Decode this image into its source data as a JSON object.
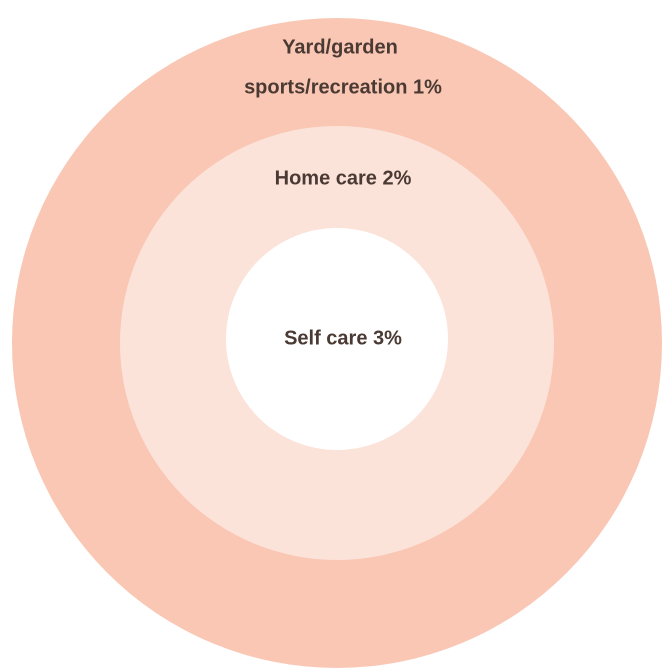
{
  "nodes": [
    {
      "lines": [
        "Yard/garden",
        "sports/recreation 1%"
      ]
    },
    {
      "lines": [
        "Home care 2%"
      ]
    },
    {
      "lines": [
        "Self care 3%"
      ]
    }
  ]
}
